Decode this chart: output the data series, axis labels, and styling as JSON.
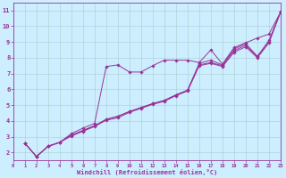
{
  "title": "",
  "xlabel": "Windchill (Refroidissement éolien,°C)",
  "ylabel": "",
  "bg_color": "#cceeff",
  "line_color": "#993399",
  "grid_color": "#aacccc",
  "xlim": [
    0,
    23
  ],
  "ylim": [
    1.5,
    11.5
  ],
  "x_ticks": [
    0,
    1,
    2,
    3,
    4,
    5,
    6,
    7,
    8,
    9,
    10,
    11,
    12,
    13,
    14,
    15,
    16,
    17,
    18,
    19,
    20,
    21,
    22,
    23
  ],
  "y_ticks": [
    2,
    3,
    4,
    5,
    6,
    7,
    8,
    9,
    10,
    11
  ],
  "series": [
    [
      2.6,
      1.75,
      2.4,
      2.65,
      3.2,
      3.55,
      3.85,
      7.45,
      7.55,
      7.1,
      7.1,
      7.5,
      7.85,
      7.85,
      7.85,
      7.7,
      8.5,
      7.6,
      8.65,
      8.95,
      9.25,
      9.5,
      10.9
    ],
    [
      2.6,
      1.75,
      2.4,
      2.65,
      3.1,
      3.4,
      3.7,
      4.1,
      4.3,
      4.6,
      4.85,
      5.1,
      5.3,
      5.65,
      5.95,
      7.65,
      7.85,
      7.55,
      8.55,
      8.9,
      8.1,
      9.1,
      10.9
    ],
    [
      2.6,
      1.75,
      2.4,
      2.65,
      3.1,
      3.4,
      3.7,
      4.1,
      4.3,
      4.6,
      4.85,
      5.1,
      5.3,
      5.65,
      5.95,
      7.55,
      7.7,
      7.5,
      8.45,
      8.8,
      8.05,
      9.0,
      10.9
    ],
    [
      2.6,
      1.75,
      2.4,
      2.65,
      3.05,
      3.35,
      3.65,
      4.05,
      4.2,
      4.55,
      4.8,
      5.05,
      5.25,
      5.6,
      5.9,
      7.5,
      7.65,
      7.45,
      8.35,
      8.7,
      8.0,
      8.95,
      10.9
    ]
  ],
  "marker": "D",
  "marker_size": 1.8,
  "linewidth": 0.7
}
